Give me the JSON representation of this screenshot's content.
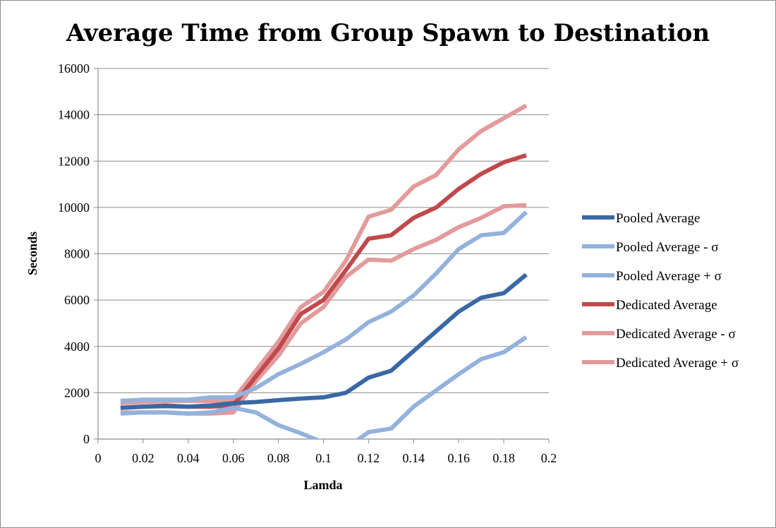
{
  "chart_data": {
    "type": "line",
    "title": "Average Time from Group Spawn to Destination",
    "xlabel": "Lamda",
    "ylabel": "Seconds",
    "xlim": [
      0,
      0.2
    ],
    "ylim": [
      0,
      16000
    ],
    "x_ticks": [
      "0",
      "0.02",
      "0.04",
      "0.06",
      "0.08",
      "0.1",
      "0.12",
      "0.14",
      "0.16",
      "0.18",
      "0.2"
    ],
    "y_ticks": [
      "0",
      "2000",
      "4000",
      "6000",
      "8000",
      "10000",
      "12000",
      "14000",
      "16000"
    ],
    "grid": "horizontal",
    "legend_position": "right",
    "x": [
      0.01,
      0.02,
      0.03,
      0.04,
      0.05,
      0.06,
      0.07,
      0.08,
      0.09,
      0.1,
      0.11,
      0.12,
      0.13,
      0.14,
      0.15,
      0.16,
      0.17,
      0.18,
      0.19
    ],
    "series": [
      {
        "name": "Pooled Average",
        "color": "#3a68a4",
        "values": [
          1350,
          1400,
          1420,
          1400,
          1450,
          1550,
          1600,
          1680,
          1750,
          1800,
          2000,
          2650,
          2950,
          3800,
          4650,
          5500,
          6100,
          6300,
          7100
        ]
      },
      {
        "name": "Pooled Average - σ",
        "color": "#93b2dc",
        "values": [
          1100,
          1150,
          1150,
          1100,
          1150,
          1350,
          1150,
          600,
          250,
          -150,
          -400,
          300,
          450,
          1400,
          2100,
          2800,
          3450,
          3750,
          4400
        ]
      },
      {
        "name": "Pooled Average + σ",
        "color": "#93b2dc",
        "values": [
          1650,
          1700,
          1700,
          1700,
          1800,
          1800,
          2200,
          2800,
          3250,
          3750,
          4300,
          5050,
          5500,
          6200,
          7150,
          8200,
          8800,
          8900,
          9800
        ]
      },
      {
        "name": "Dedicated Average",
        "color": "#c0494b",
        "values": [
          1350,
          1400,
          1450,
          1400,
          1400,
          1450,
          2700,
          3900,
          5400,
          6000,
          7300,
          8650,
          8800,
          9550,
          10000,
          10800,
          11450,
          11950,
          12250
        ]
      },
      {
        "name": "Dedicated Average - σ",
        "color": "#e39a9b",
        "values": [
          1150,
          1150,
          1150,
          1100,
          1100,
          1150,
          2500,
          3600,
          5000,
          5700,
          7000,
          7750,
          7700,
          8200,
          8600,
          9150,
          9550,
          10050,
          10100
        ]
      },
      {
        "name": "Dedicated Average + σ",
        "color": "#e39a9b",
        "values": [
          1550,
          1600,
          1650,
          1650,
          1650,
          1700,
          2950,
          4200,
          5700,
          6350,
          7700,
          9600,
          9900,
          10900,
          11400,
          12500,
          13300,
          13850,
          14400
        ]
      }
    ]
  }
}
